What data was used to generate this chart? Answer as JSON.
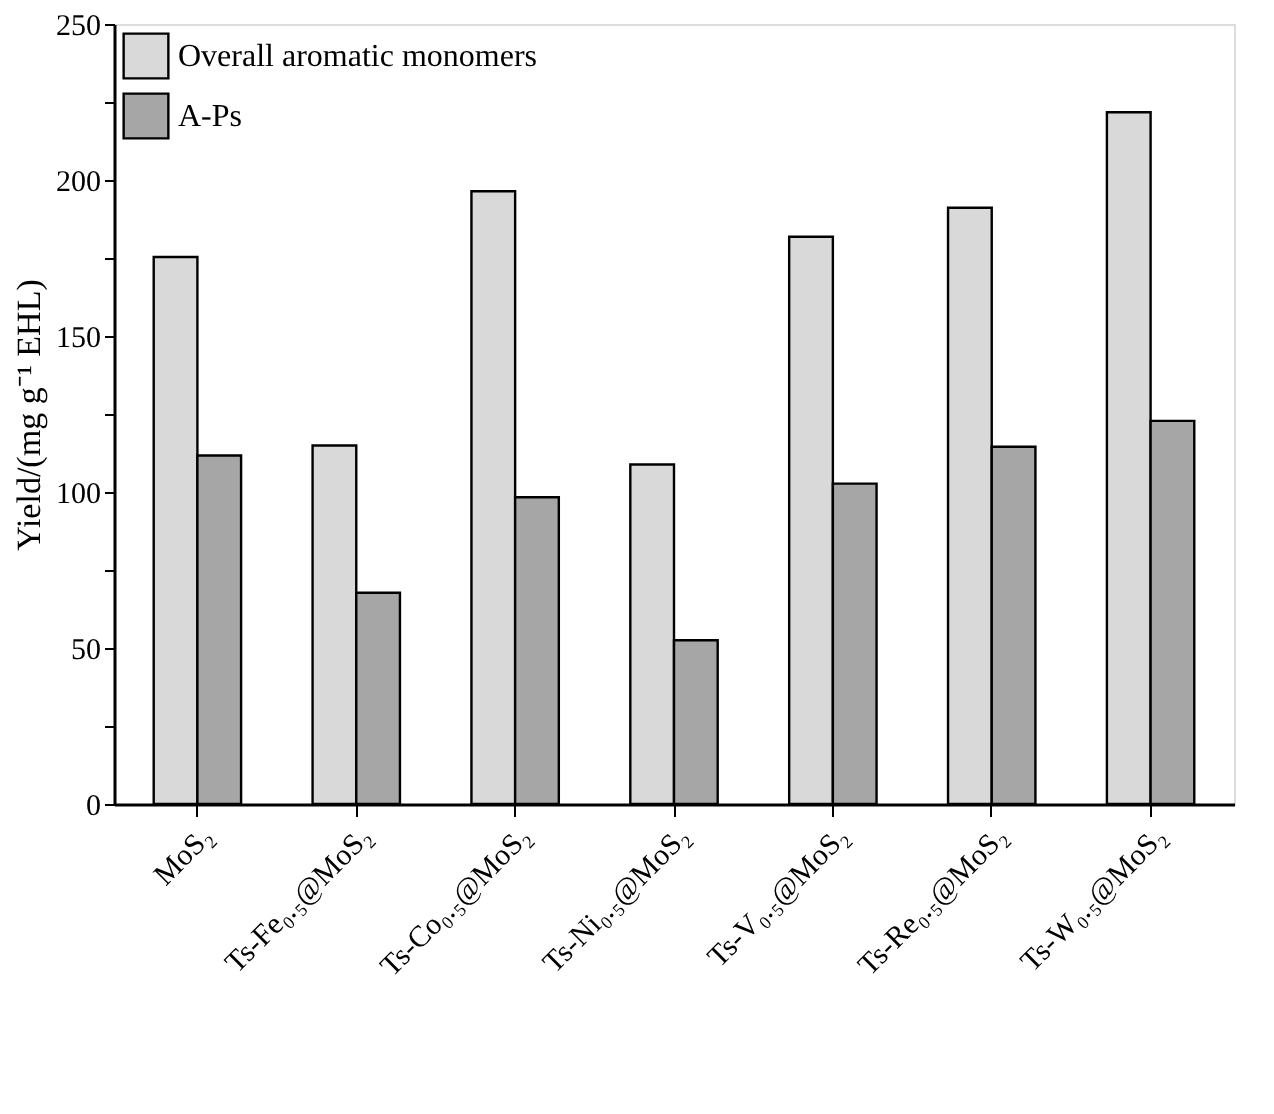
{
  "chart_data": {
    "type": "bar",
    "ylabel": "Yield/(mg g⁻¹ EHL)",
    "categories": [
      "MoS₂",
      "Ts-Fe₀.₅@MoS₂",
      "Ts-Co₀.₅@MoS₂",
      "Ts-Ni₀.₅@MoS₂",
      "Ts-V₀.₅@MoS₂",
      "Ts-Re₀.₅@MoS₂",
      "Ts-W₀.₅@MoS₂"
    ],
    "series": [
      {
        "name": "Overall aromatic monomers",
        "color": "#d9d9d9",
        "values": [
          175.3,
          114.9,
          196.4,
          108.8,
          181.8,
          191.1,
          221.7
        ]
      },
      {
        "name": "A-Ps",
        "color": "#a6a6a6",
        "values": [
          111.7,
          67.7,
          98.3,
          52.5,
          102.7,
          114.5,
          122.8
        ]
      }
    ],
    "ylim": [
      0,
      250
    ],
    "yticks": [
      0,
      {
        "value": 25,
        "label": null
      },
      50,
      {
        "value": 75,
        "label": null
      },
      100,
      {
        "value": 125,
        "label": null
      },
      150,
      {
        "value": 175,
        "label": null
      },
      200,
      {
        "value": 225,
        "label": null
      },
      250
    ],
    "grid": false,
    "legend": "top left"
  }
}
